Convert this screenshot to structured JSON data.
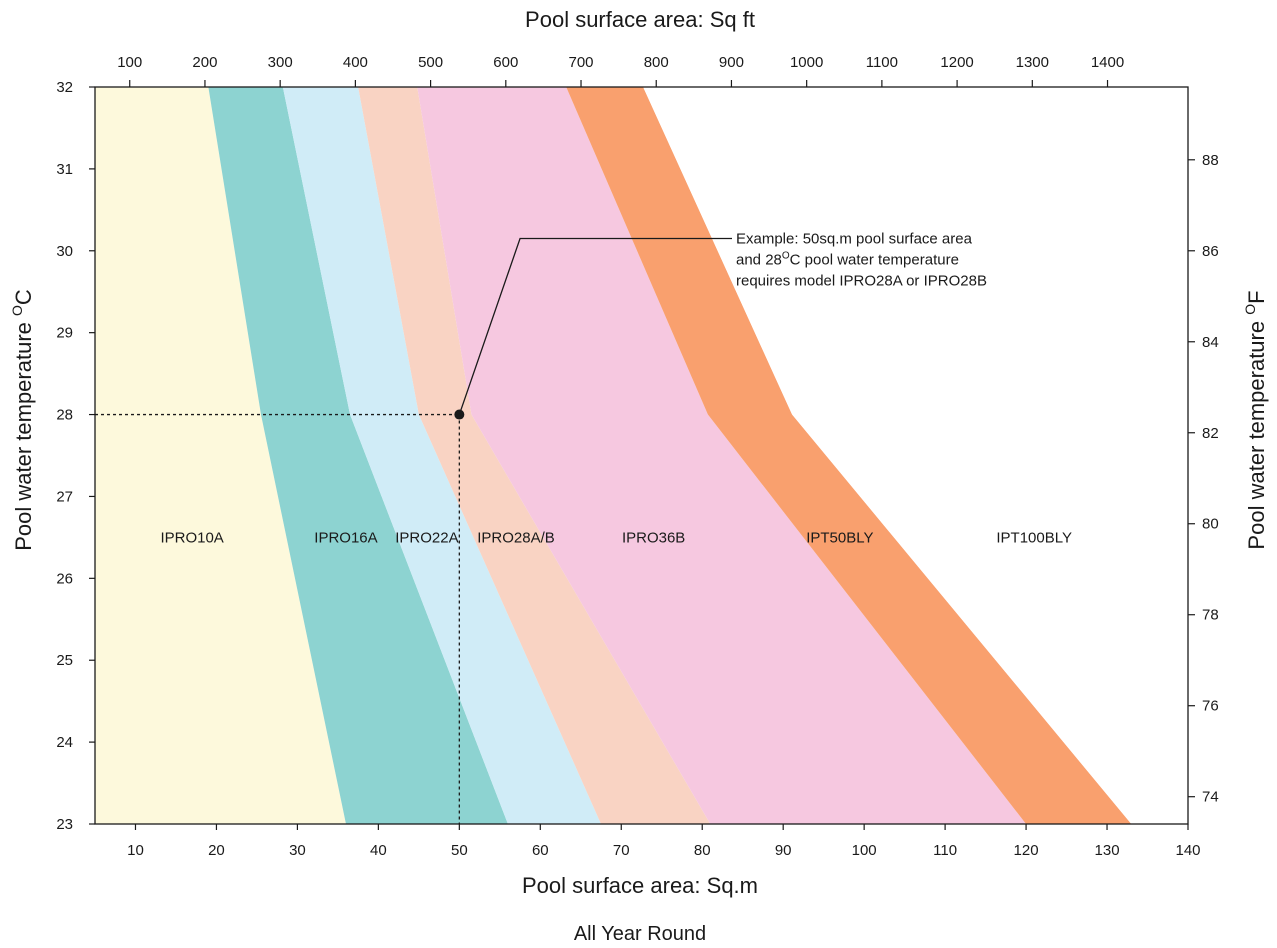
{
  "chart_data": {
    "type": "area",
    "title": "",
    "caption": "All Year Round",
    "xlabel": "Pool surface area: Sq.m",
    "x2label": "Pool surface area: Sq ft",
    "ylabel": "Pool water temperature ",
    "ylabel_unit": "C",
    "y2label": "Pool water temperature ",
    "y2label_unit": "F",
    "unit_superscript": "O",
    "xlim": [
      5,
      140
    ],
    "ylim": [
      23,
      32
    ],
    "y2lim": [
      73.4,
      89.6
    ],
    "x_ticks": [
      10,
      20,
      30,
      40,
      50,
      60,
      70,
      80,
      90,
      100,
      110,
      120,
      130,
      140
    ],
    "y_ticks": [
      23,
      24,
      25,
      26,
      27,
      28,
      29,
      30,
      31,
      32
    ],
    "x2_ticks": [
      {
        "label": "100",
        "sqm": 9.29
      },
      {
        "label": "200",
        "sqm": 18.58
      },
      {
        "label": "300",
        "sqm": 27.87
      },
      {
        "label": "400",
        "sqm": 37.16
      },
      {
        "label": "500",
        "sqm": 46.45
      },
      {
        "label": "600",
        "sqm": 55.74
      },
      {
        "label": "700",
        "sqm": 65.03
      },
      {
        "label": "800",
        "sqm": 74.32
      },
      {
        "label": "900",
        "sqm": 83.61
      },
      {
        "label": "1000",
        "sqm": 92.9
      },
      {
        "label": "1100",
        "sqm": 102.19
      },
      {
        "label": "1200",
        "sqm": 111.48
      },
      {
        "label": "1300",
        "sqm": 120.77
      },
      {
        "label": "1400",
        "sqm": 130.06
      }
    ],
    "y2_ticks": [
      74,
      76,
      78,
      80,
      82,
      84,
      86,
      88
    ],
    "boundaries": [
      [
        [
          19,
          32
        ],
        [
          25.5,
          28
        ],
        [
          36,
          23
        ]
      ],
      [
        [
          28.2,
          32
        ],
        [
          36.5,
          28
        ],
        [
          56,
          23
        ]
      ],
      [
        [
          37.5,
          32
        ],
        [
          45,
          28
        ],
        [
          67.5,
          23
        ]
      ],
      [
        [
          44.8,
          32
        ],
        [
          51.5,
          28
        ],
        [
          81,
          23
        ]
      ],
      [
        [
          63.2,
          32
        ],
        [
          80.7,
          28
        ],
        [
          120,
          23
        ]
      ],
      [
        [
          72.7,
          32
        ],
        [
          91.1,
          28
        ],
        [
          133,
          23
        ]
      ]
    ],
    "bands": [
      {
        "name": "IPRO10A",
        "color": "#fdf9dc",
        "label_at": [
          17,
          26.5
        ]
      },
      {
        "name": "IPRO16A",
        "color": "#8dd3d1",
        "label_at": [
          36,
          26.5
        ]
      },
      {
        "name": "IPRO22A",
        "color": "#d0ecf7",
        "label_at": [
          46,
          26.5
        ]
      },
      {
        "name": "IPRO28A/B",
        "color": "#f9d3c3",
        "label_at": [
          57,
          26.5
        ]
      },
      {
        "name": "IPRO36B",
        "color": "#f6c8e0",
        "label_at": [
          74,
          26.5
        ]
      },
      {
        "name": "IPT50BLY",
        "color": "#f9a06e",
        "label_at": [
          97,
          26.5
        ]
      },
      {
        "name": "IPT100BLY",
        "color": "#ffffff",
        "label_at": [
          121,
          26.5
        ]
      }
    ],
    "example": {
      "x": 50,
      "y": 28,
      "lines": [
        {
          "pre": "Example: 50sq.m pool surface area",
          "sup": "",
          "post": ""
        },
        {
          "pre": "and 28",
          "sup": "O",
          "post": "C pool water temperature"
        },
        {
          "pre": "requires model IPRO28A or IPRO28B",
          "sup": "",
          "post": ""
        }
      ]
    }
  }
}
